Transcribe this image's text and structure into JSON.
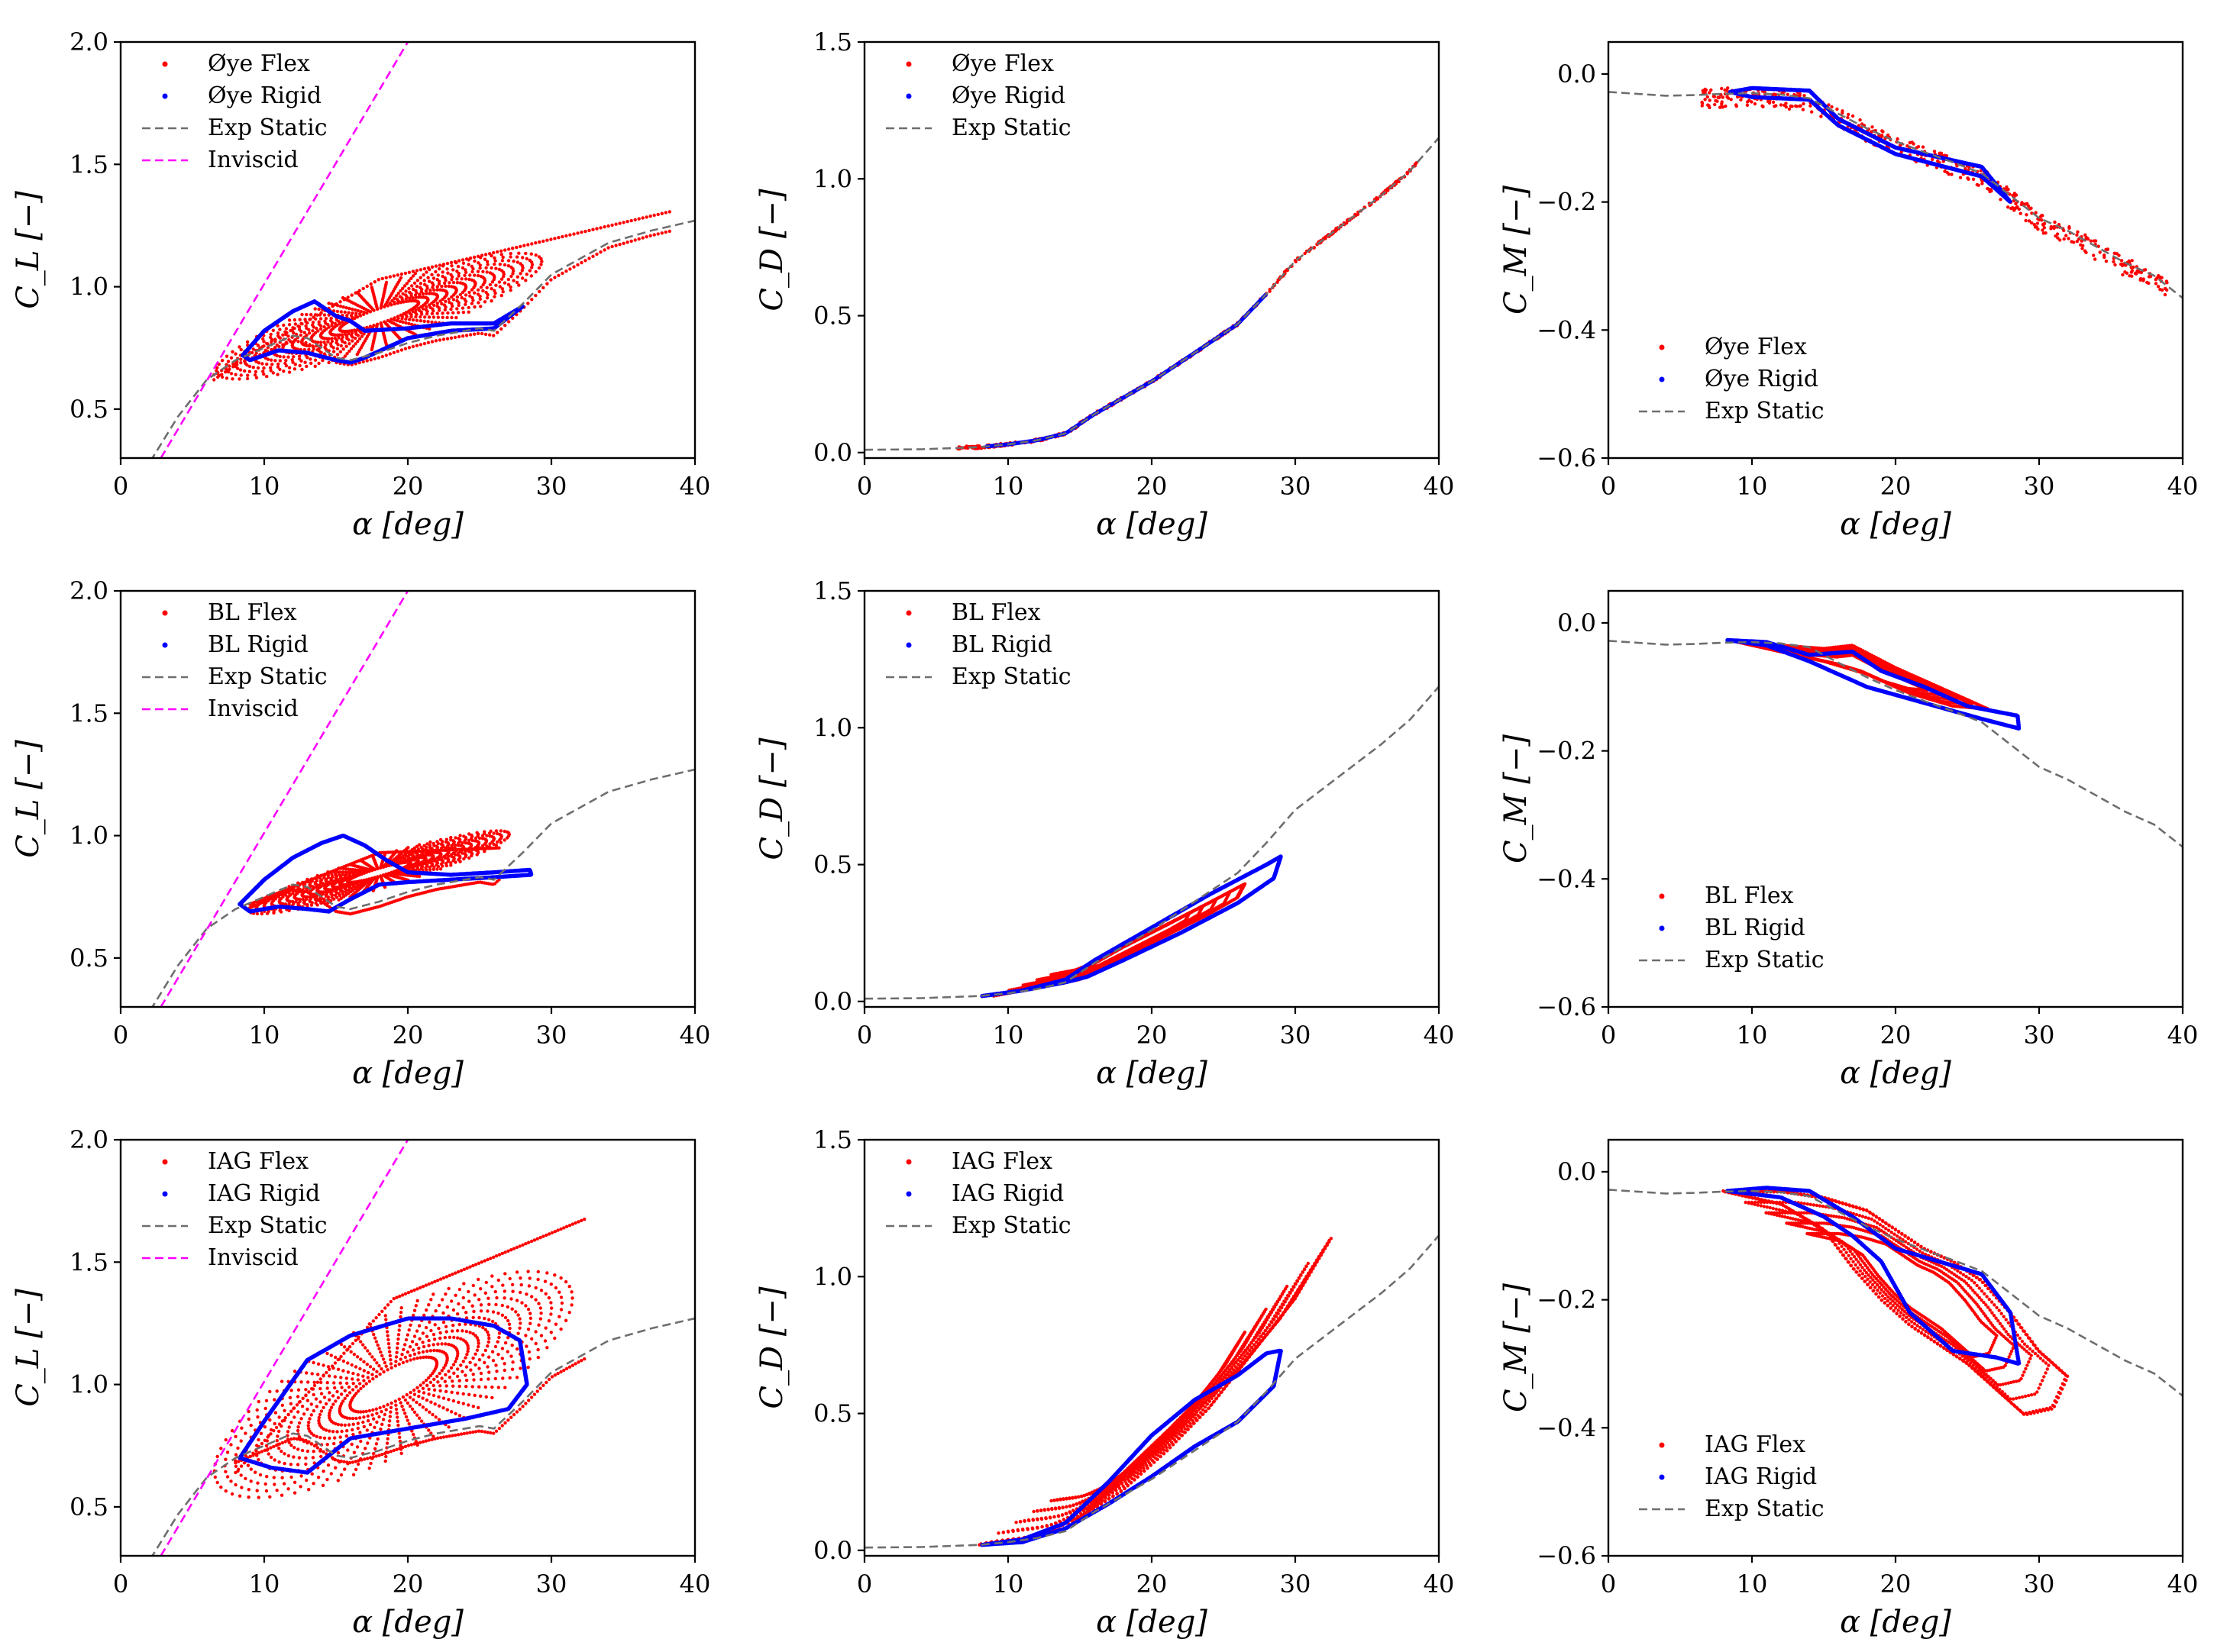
{
  "colors": {
    "flex": "#ff0000",
    "rigid": "#0000ff",
    "exp_static": "#6e6e6e",
    "inviscid": "#ff00ff"
  },
  "exp_static_curves": {
    "cl": {
      "x": [
        0,
        2,
        4,
        6,
        8,
        10,
        12,
        13,
        14,
        15,
        16,
        18,
        20,
        22,
        24,
        25,
        26,
        28,
        30,
        34,
        37,
        40
      ],
      "y": [
        0.05,
        0.28,
        0.47,
        0.62,
        0.7,
        0.75,
        0.8,
        0.79,
        0.75,
        0.71,
        0.7,
        0.73,
        0.77,
        0.8,
        0.82,
        0.83,
        0.82,
        0.93,
        1.05,
        1.18,
        1.23,
        1.27
      ]
    },
    "cd": {
      "x": [
        0,
        4,
        8,
        10,
        12,
        14,
        16,
        18,
        20,
        22,
        24,
        26,
        28,
        30,
        32,
        34,
        36,
        38,
        40
      ],
      "y": [
        0.01,
        0.012,
        0.02,
        0.03,
        0.045,
        0.07,
        0.14,
        0.2,
        0.26,
        0.33,
        0.4,
        0.47,
        0.58,
        0.7,
        0.78,
        0.86,
        0.94,
        1.03,
        1.15
      ]
    },
    "cm": {
      "x": [
        0,
        2,
        4,
        6,
        8,
        10,
        12,
        14,
        16,
        18,
        20,
        22,
        24,
        26,
        28,
        30,
        32,
        34,
        36,
        38,
        40
      ],
      "y": [
        -0.028,
        -0.031,
        -0.034,
        -0.033,
        -0.031,
        -0.03,
        -0.032,
        -0.038,
        -0.062,
        -0.085,
        -0.105,
        -0.122,
        -0.138,
        -0.155,
        -0.19,
        -0.225,
        -0.245,
        -0.27,
        -0.295,
        -0.315,
        -0.35
      ]
    }
  },
  "inviscid_line": {
    "x": [
      2.8,
      20
    ],
    "y": [
      0.3,
      2.0
    ]
  },
  "chart_data": [
    {
      "type": "scatter",
      "row": 0,
      "col": 0,
      "model": "Øye",
      "ylabel_text": "C_L",
      "xlim": [
        0,
        40
      ],
      "ylim": [
        0.3,
        2.0
      ],
      "x_ticks": [
        "0",
        "10",
        "20",
        "30",
        "40"
      ],
      "y_ticks": [
        "0.5",
        "1.0",
        "1.5",
        "2.0"
      ],
      "y_tick_values": [
        0.5,
        1.0,
        1.5,
        2.0
      ],
      "xlabel": "α [deg]",
      "ylabel": "C_L [−]",
      "legend_position": "upper-left",
      "legend": [
        "Øye Flex",
        "Øye Rigid",
        "Exp Static",
        "Inviscid"
      ],
      "flex_loop": {
        "center": [
          18,
          0.88
        ],
        "amplitude_alpha": 10,
        "amplitude_value": 0.15,
        "extent_alpha": [
          6.5,
          38.5
        ],
        "extent_value": [
          0.64,
          1.31
        ]
      },
      "rigid_loop": {
        "x": [
          8.5,
          10,
          12,
          13.5,
          15,
          16,
          17,
          20,
          23,
          26,
          28,
          26,
          23,
          20,
          17,
          16,
          15,
          13,
          11,
          9,
          8.5
        ],
        "y": [
          0.72,
          0.82,
          0.9,
          0.94,
          0.88,
          0.86,
          0.82,
          0.83,
          0.85,
          0.85,
          0.92,
          0.83,
          0.82,
          0.79,
          0.71,
          0.69,
          0.7,
          0.73,
          0.74,
          0.7,
          0.72
        ]
      }
    },
    {
      "type": "scatter",
      "row": 0,
      "col": 1,
      "model": "Øye",
      "ylabel_text": "C_D",
      "xlim": [
        0,
        40
      ],
      "ylim": [
        -0.02,
        1.5
      ],
      "x_ticks": [
        "0",
        "10",
        "20",
        "30",
        "40"
      ],
      "y_ticks": [
        "0.0",
        "0.5",
        "1.0",
        "1.5"
      ],
      "y_tick_values": [
        0.0,
        0.5,
        1.0,
        1.5
      ],
      "xlabel": "α [deg]",
      "ylabel": "C_D [−]",
      "legend_position": "upper-left",
      "legend": [
        "Øye Flex",
        "Øye Rigid",
        "Exp Static"
      ],
      "flex_loop": {
        "follow_static": true,
        "extent_alpha": [
          6.5,
          38.5
        ]
      },
      "rigid_loop": {
        "follow_static": true,
        "extent_alpha": [
          8.5,
          28
        ]
      }
    },
    {
      "type": "scatter",
      "row": 0,
      "col": 2,
      "model": "Øye",
      "ylabel_text": "C_M",
      "xlim": [
        0,
        40
      ],
      "ylim": [
        -0.6,
        0.05
      ],
      "x_ticks": [
        "0",
        "10",
        "20",
        "30",
        "40"
      ],
      "y_ticks": [
        "−0.6",
        "−0.4",
        "−0.2",
        "0.0"
      ],
      "y_tick_values": [
        -0.6,
        -0.4,
        -0.2,
        0.0
      ],
      "xlabel": "α [deg]",
      "ylabel": "C_M [−]",
      "legend_position": "lower-left",
      "legend": [
        "Øye Flex",
        "Øye Rigid",
        "Exp Static"
      ],
      "flex_loop": {
        "follow_static": true,
        "extent_alpha": [
          6.5,
          39
        ]
      },
      "rigid_loop": {
        "x": [
          8.5,
          10,
          14,
          16,
          20,
          26,
          28,
          26,
          20,
          16,
          14,
          10,
          8.5
        ],
        "y": [
          -0.028,
          -0.022,
          -0.026,
          -0.07,
          -0.115,
          -0.145,
          -0.2,
          -0.16,
          -0.125,
          -0.08,
          -0.04,
          -0.036,
          -0.028
        ]
      }
    },
    {
      "type": "scatter",
      "row": 1,
      "col": 0,
      "model": "BL",
      "ylabel_text": "C_L",
      "xlim": [
        0,
        40
      ],
      "ylim": [
        0.3,
        2.0
      ],
      "x_ticks": [
        "0",
        "10",
        "20",
        "30",
        "40"
      ],
      "y_ticks": [
        "0.5",
        "1.0",
        "1.5",
        "2.0"
      ],
      "y_tick_values": [
        0.5,
        1.0,
        1.5,
        2.0
      ],
      "xlabel": "α [deg]",
      "ylabel": "C_L [−]",
      "legend_position": "upper-left",
      "legend": [
        "BL Flex",
        "BL Rigid",
        "Exp Static",
        "Inviscid"
      ],
      "flex_loop": {
        "center": [
          18,
          0.85
        ],
        "amplitude_alpha": 8,
        "amplitude_value": 0.08,
        "extent_alpha": [
          9,
          26.5
        ],
        "extent_value": [
          0.72,
          0.95
        ]
      },
      "rigid_loop": {
        "x": [
          8.3,
          10,
          12,
          14,
          15.5,
          17,
          18.5,
          20,
          23,
          26,
          28.5,
          28.6,
          26,
          23,
          20,
          18,
          16,
          14.5,
          13,
          11,
          9,
          8.3
        ],
        "y": [
          0.72,
          0.82,
          0.91,
          0.97,
          1.0,
          0.96,
          0.9,
          0.85,
          0.84,
          0.85,
          0.86,
          0.84,
          0.83,
          0.82,
          0.81,
          0.8,
          0.74,
          0.69,
          0.7,
          0.71,
          0.69,
          0.72
        ]
      }
    },
    {
      "type": "scatter",
      "row": 1,
      "col": 1,
      "model": "BL",
      "ylabel_text": "C_D",
      "xlim": [
        0,
        40
      ],
      "ylim": [
        -0.02,
        1.5
      ],
      "x_ticks": [
        "0",
        "10",
        "20",
        "30",
        "40"
      ],
      "y_ticks": [
        "0.0",
        "0.5",
        "1.0",
        "1.5"
      ],
      "y_tick_values": [
        0.0,
        0.5,
        1.0,
        1.5
      ],
      "xlabel": "α [deg]",
      "ylabel": "C_D [−]",
      "legend_position": "upper-left",
      "legend": [
        "BL Flex",
        "BL Rigid",
        "Exp Static"
      ],
      "flex_loop": {
        "x": [
          9,
          12,
          15,
          18,
          21,
          24,
          26.5,
          26,
          24,
          21,
          18,
          15,
          12,
          9
        ],
        "y": [
          0.02,
          0.05,
          0.11,
          0.2,
          0.28,
          0.36,
          0.43,
          0.38,
          0.32,
          0.24,
          0.16,
          0.08,
          0.05,
          0.02
        ]
      },
      "rigid_loop": {
        "x": [
          8.2,
          11,
          14,
          16,
          20,
          24,
          28,
          29,
          28.5,
          26,
          22,
          18,
          15.5,
          14,
          11,
          8.2
        ],
        "y": [
          0.02,
          0.04,
          0.08,
          0.15,
          0.27,
          0.39,
          0.5,
          0.53,
          0.45,
          0.36,
          0.25,
          0.15,
          0.09,
          0.07,
          0.04,
          0.02
        ]
      }
    },
    {
      "type": "scatter",
      "row": 1,
      "col": 2,
      "model": "BL",
      "ylabel_text": "C_M",
      "xlim": [
        0,
        40
      ],
      "ylim": [
        -0.6,
        0.05
      ],
      "x_ticks": [
        "0",
        "10",
        "20",
        "30",
        "40"
      ],
      "y_ticks": [
        "−0.6",
        "−0.4",
        "−0.2",
        "0.0"
      ],
      "y_tick_values": [
        -0.6,
        -0.4,
        -0.2,
        0.0
      ],
      "xlabel": "α [deg]",
      "ylabel": "C_M [−]",
      "legend_position": "lower-left",
      "legend": [
        "BL Flex",
        "BL Rigid",
        "Exp Static"
      ],
      "flex_loop": {
        "x": [
          9,
          12,
          15,
          17,
          20,
          23,
          26.5,
          24,
          21,
          18,
          15,
          12,
          9
        ],
        "y": [
          -0.03,
          -0.035,
          -0.04,
          -0.035,
          -0.07,
          -0.1,
          -0.135,
          -0.13,
          -0.11,
          -0.08,
          -0.06,
          -0.045,
          -0.03
        ]
      },
      "rigid_loop": {
        "x": [
          8.3,
          11,
          14,
          17,
          19,
          22,
          25,
          28.5,
          28.6,
          26,
          22,
          18,
          14,
          11,
          8.3
        ],
        "y": [
          -0.027,
          -0.03,
          -0.05,
          -0.045,
          -0.075,
          -0.1,
          -0.13,
          -0.145,
          -0.165,
          -0.15,
          -0.125,
          -0.1,
          -0.06,
          -0.035,
          -0.027
        ]
      }
    },
    {
      "type": "scatter",
      "row": 2,
      "col": 0,
      "model": "IAG",
      "ylabel_text": "C_L",
      "xlim": [
        0,
        40
      ],
      "ylim": [
        0.3,
        2.0
      ],
      "x_ticks": [
        "0",
        "10",
        "20",
        "30",
        "40"
      ],
      "y_ticks": [
        "0.5",
        "1.0",
        "1.5",
        "2.0"
      ],
      "y_tick_values": [
        0.5,
        1.0,
        1.5,
        2.0
      ],
      "xlabel": "α [deg]",
      "ylabel": "C_L [−]",
      "legend_position": "upper-left",
      "legend": [
        "IAG Flex",
        "IAG Rigid",
        "Exp Static",
        "Inviscid"
      ],
      "flex_loop": {
        "center": [
          19,
          1.0
        ],
        "amplitude_alpha": 11,
        "amplitude_value": 0.35,
        "extent_alpha": [
          8,
          32.5
        ],
        "extent_value": [
          0.64,
          1.68
        ]
      },
      "rigid_loop": {
        "x": [
          8.3,
          10,
          13,
          16,
          20,
          23,
          26,
          27.8,
          28.3,
          27,
          24,
          20,
          16,
          13,
          10.5,
          8.3
        ],
        "y": [
          0.7,
          0.85,
          1.1,
          1.2,
          1.27,
          1.27,
          1.24,
          1.18,
          1.0,
          0.9,
          0.86,
          0.82,
          0.78,
          0.64,
          0.66,
          0.7
        ]
      }
    },
    {
      "type": "scatter",
      "row": 2,
      "col": 1,
      "model": "IAG",
      "ylabel_text": "C_D",
      "xlim": [
        0,
        40
      ],
      "ylim": [
        -0.02,
        1.5
      ],
      "x_ticks": [
        "0",
        "10",
        "20",
        "30",
        "40"
      ],
      "y_ticks": [
        "0.0",
        "0.5",
        "1.0",
        "1.5"
      ],
      "y_tick_values": [
        0.0,
        0.5,
        1.0,
        1.5
      ],
      "xlabel": "α [deg]",
      "ylabel": "C_D [−]",
      "legend_position": "upper-left",
      "legend": [
        "IAG Flex",
        "IAG Rigid",
        "Exp Static"
      ],
      "flex_loop": {
        "x": [
          8,
          11,
          14,
          17,
          20,
          23,
          26,
          29,
          32.5,
          30,
          27,
          24,
          21,
          18,
          15,
          12,
          9,
          8
        ],
        "y": [
          0.02,
          0.04,
          0.08,
          0.2,
          0.35,
          0.5,
          0.66,
          0.85,
          1.14,
          0.92,
          0.72,
          0.52,
          0.36,
          0.22,
          0.12,
          0.05,
          0.03,
          0.02
        ]
      },
      "rigid_loop": {
        "x": [
          8.2,
          11,
          14,
          17,
          20,
          23,
          26,
          28,
          29,
          28.5,
          26,
          23,
          20,
          17,
          14,
          11,
          8.2
        ],
        "y": [
          0.02,
          0.04,
          0.1,
          0.25,
          0.42,
          0.55,
          0.64,
          0.72,
          0.73,
          0.6,
          0.47,
          0.38,
          0.27,
          0.17,
          0.08,
          0.03,
          0.02
        ]
      }
    },
    {
      "type": "scatter",
      "row": 2,
      "col": 2,
      "model": "IAG",
      "ylabel_text": "C_M",
      "xlim": [
        0,
        40
      ],
      "ylim": [
        -0.6,
        0.05
      ],
      "x_ticks": [
        "0",
        "10",
        "20",
        "30",
        "40"
      ],
      "y_ticks": [
        "−0.6",
        "−0.4",
        "−0.2",
        "0.0"
      ],
      "y_tick_values": [
        -0.6,
        -0.4,
        -0.2,
        0.0
      ],
      "xlabel": "α [deg]",
      "ylabel": "C_M [−]",
      "legend_position": "lower-left",
      "legend": [
        "IAG Flex",
        "IAG Rigid",
        "Exp Static"
      ],
      "flex_loop": {
        "x": [
          8,
          12,
          15,
          18,
          20,
          22,
          24,
          26,
          28,
          30,
          32,
          31,
          29,
          27,
          25,
          23,
          21,
          19,
          17,
          15,
          12,
          8
        ],
        "y": [
          -0.03,
          -0.03,
          -0.04,
          -0.06,
          -0.09,
          -0.12,
          -0.14,
          -0.17,
          -0.22,
          -0.28,
          -0.32,
          -0.37,
          -0.38,
          -0.34,
          -0.3,
          -0.27,
          -0.24,
          -0.2,
          -0.15,
          -0.09,
          -0.05,
          -0.03
        ]
      },
      "rigid_loop": {
        "x": [
          8.3,
          11,
          14,
          17,
          20,
          23,
          26,
          28,
          28.6,
          27,
          24,
          21,
          19,
          17,
          15,
          12,
          8.3
        ],
        "y": [
          -0.03,
          -0.025,
          -0.03,
          -0.07,
          -0.12,
          -0.14,
          -0.16,
          -0.22,
          -0.3,
          -0.29,
          -0.28,
          -0.22,
          -0.14,
          -0.1,
          -0.07,
          -0.04,
          -0.03
        ]
      }
    }
  ]
}
